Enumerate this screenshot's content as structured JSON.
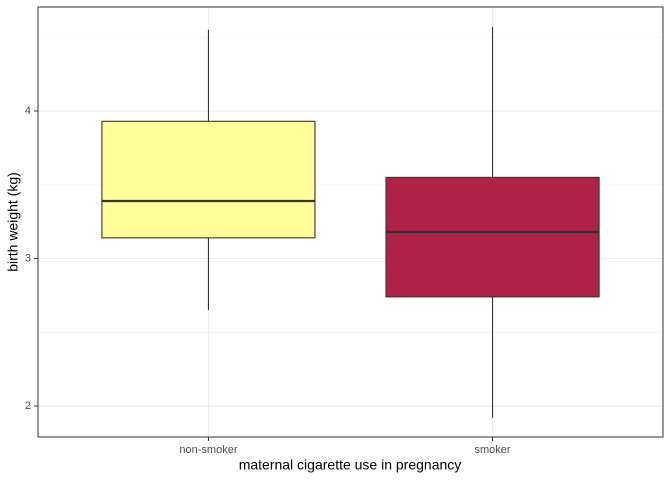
{
  "chart_data": {
    "type": "boxplot",
    "x_label": "maternal cigarette use in pregnancy",
    "y_label": "birth weight (kg)",
    "categories": [
      "non-smoker",
      "smoker"
    ],
    "colors": [
      "#ffff99",
      "#b02346"
    ],
    "boxes": [
      {
        "min": 2.65,
        "q1": 3.14,
        "median": 3.39,
        "q3": 3.93,
        "max": 4.55
      },
      {
        "min": 1.92,
        "q1": 2.74,
        "median": 3.18,
        "q3": 3.55,
        "max": 4.57
      }
    ],
    "ylim": [
      1.79,
      4.705
    ],
    "yticks": [
      2,
      3,
      4
    ],
    "y_minor_grid": [
      2.5,
      3.5,
      4.5
    ],
    "grid": true
  }
}
